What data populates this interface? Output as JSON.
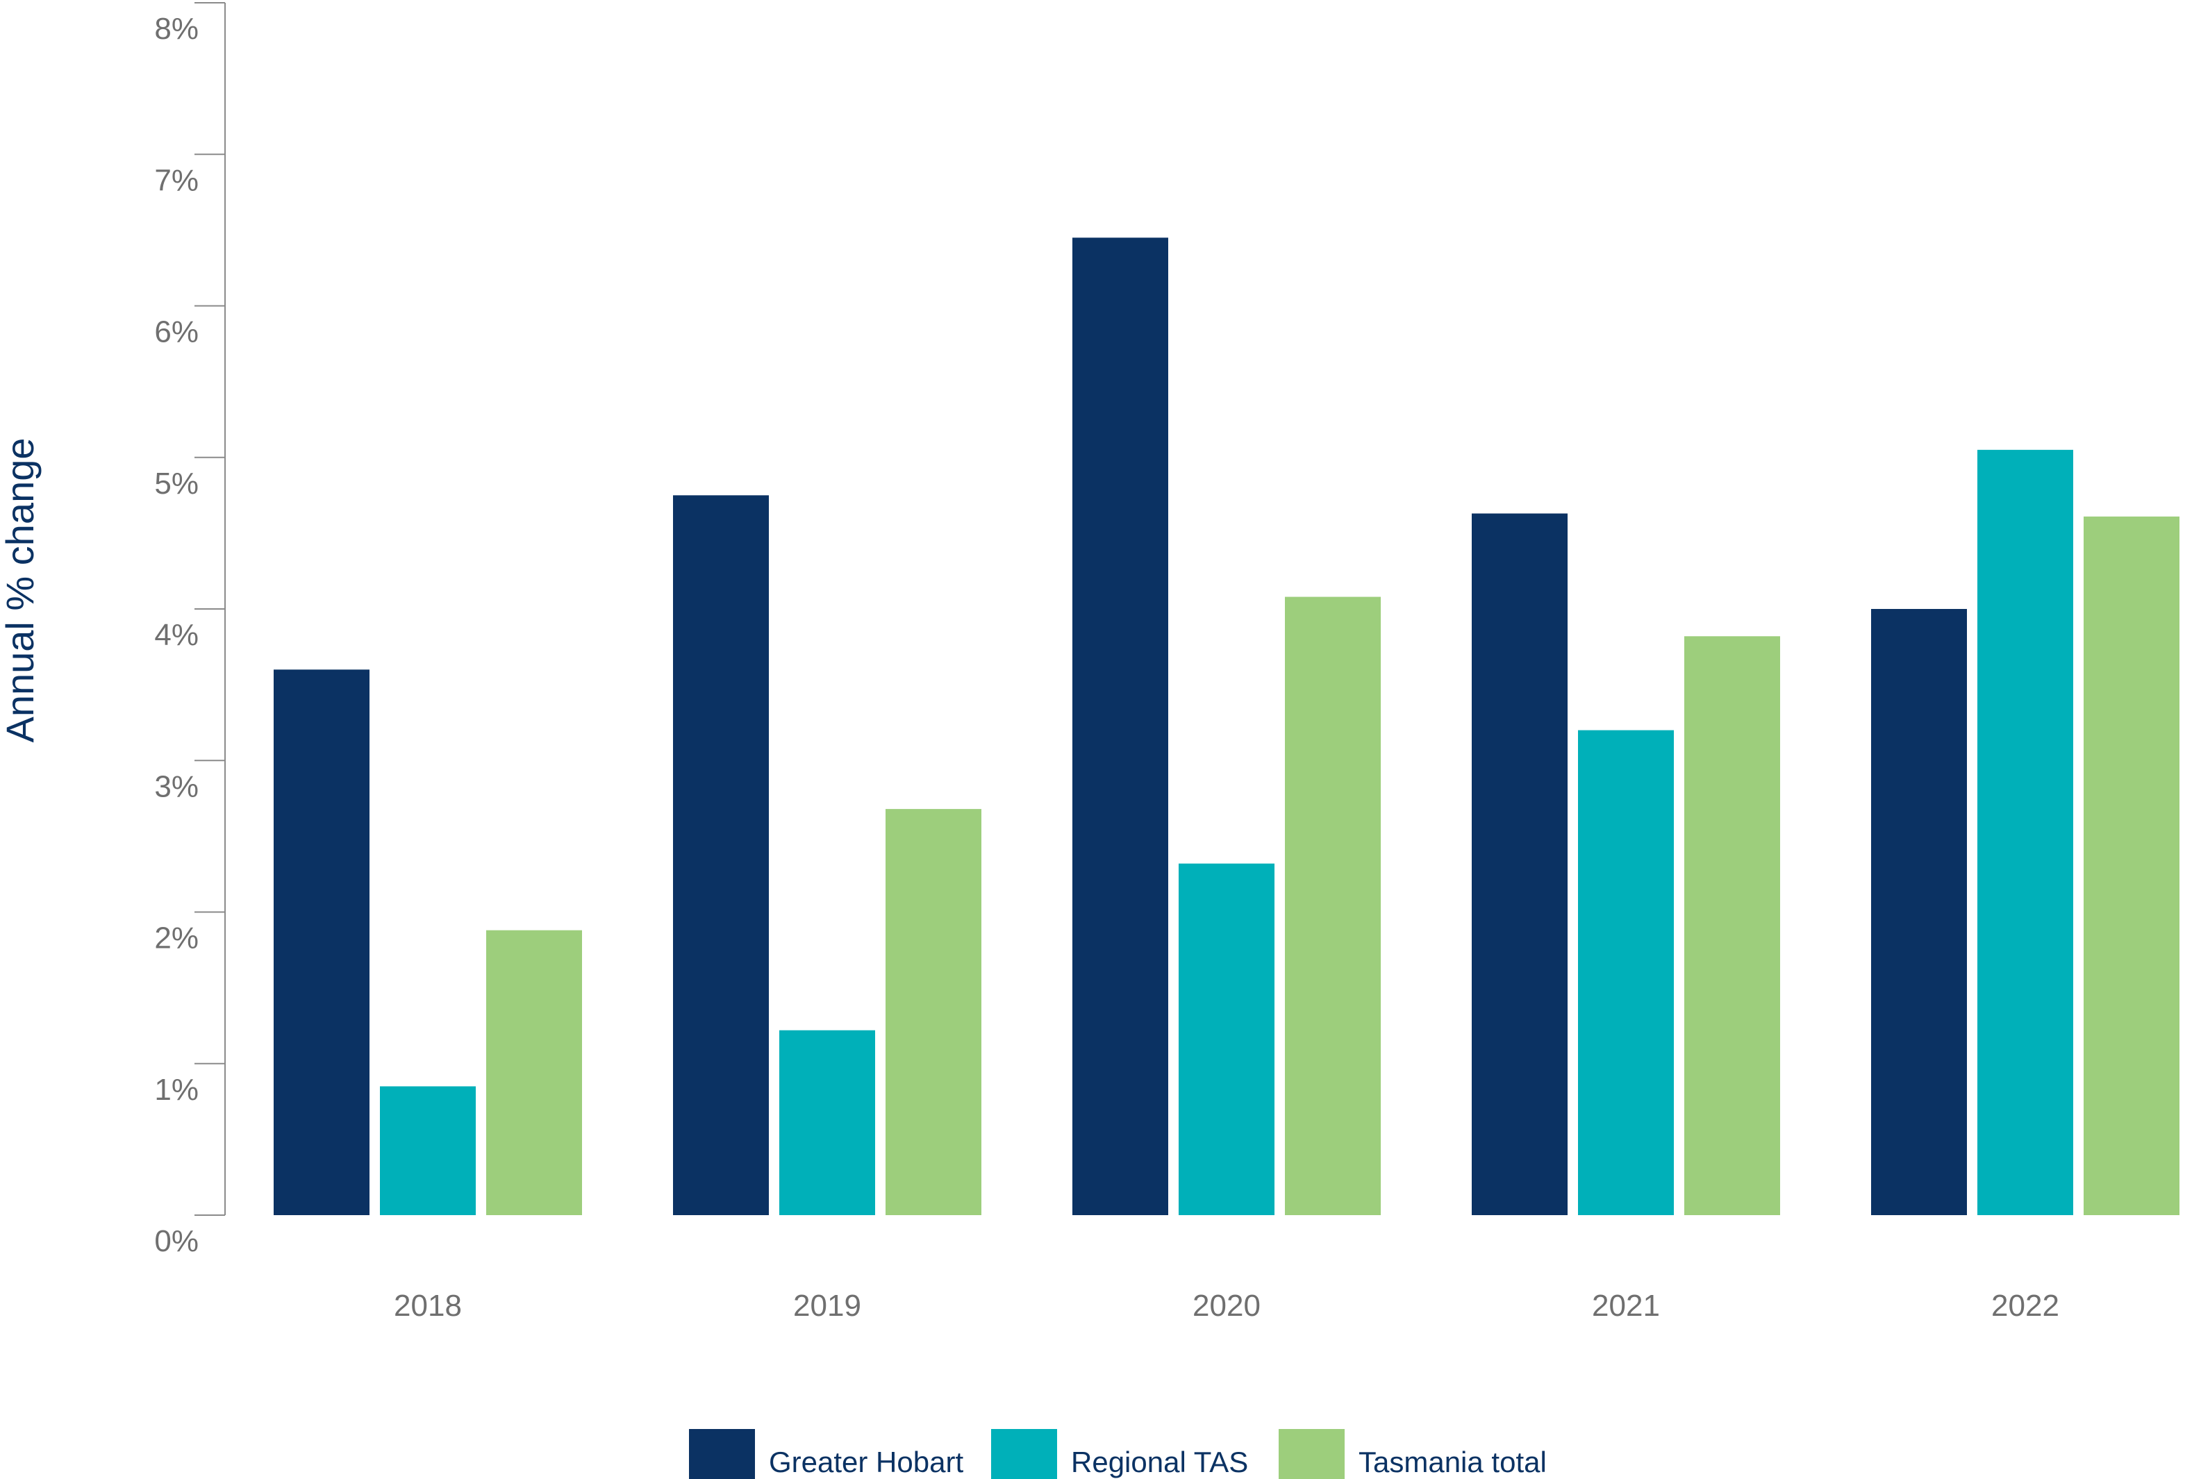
{
  "chart_data": {
    "type": "bar",
    "title": "",
    "xlabel": "",
    "ylabel": "Annual % change",
    "categories": [
      "2018",
      "2019",
      "2020",
      "2021",
      "2022"
    ],
    "series": [
      {
        "name": "Greater Hobart",
        "color": "#0b3263",
        "values": [
          3.6,
          4.75,
          6.45,
          4.63,
          4.0
        ]
      },
      {
        "name": "Regional TAS",
        "color": "#00b0b9",
        "values": [
          0.85,
          1.22,
          2.32,
          3.2,
          5.05
        ]
      },
      {
        "name": "Tasmania total",
        "color": "#9dce7c",
        "values": [
          1.88,
          2.68,
          4.08,
          3.82,
          4.61
        ]
      }
    ],
    "ylim": [
      0,
      8
    ],
    "yticks": [
      0,
      1,
      2,
      3,
      4,
      5,
      6,
      7,
      8
    ],
    "ytick_labels": [
      "0%",
      "1%",
      "2%",
      "3%",
      "4%",
      "5%",
      "6%",
      "7%",
      "8%"
    ],
    "grid": false,
    "legend_position": "bottom-center"
  }
}
